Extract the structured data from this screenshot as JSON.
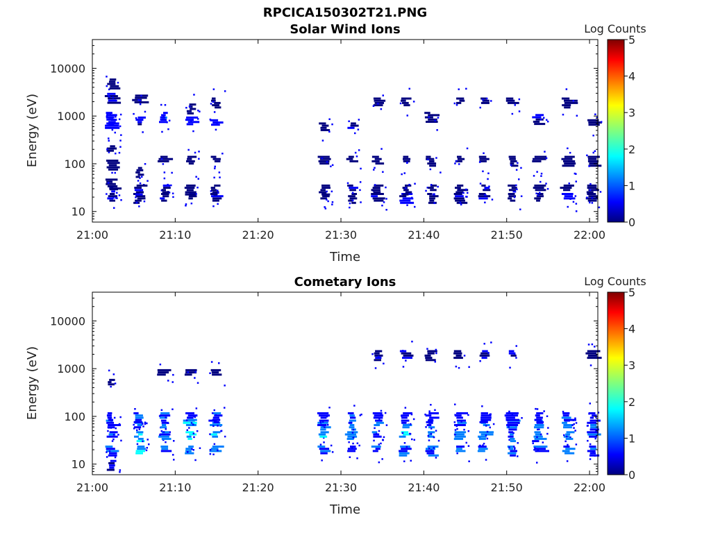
{
  "figure": {
    "title": "RPCICA150302T21.PNG"
  },
  "colors": {
    "colormap": [
      "#00007f",
      "#0000ff",
      "#007fff",
      "#00ffff",
      "#7fff7f",
      "#ffff00",
      "#ff7f00",
      "#ff0000",
      "#7f0000"
    ]
  },
  "chart_data": [
    {
      "type": "heatmap",
      "title": "Solar Wind Ions",
      "xlabel": "Time",
      "ylabel": "Energy (eV)",
      "xlim": [
        "21:00",
        "22:01"
      ],
      "x_ticks": [
        "21:00",
        "21:10",
        "21:20",
        "21:30",
        "21:40",
        "21:50",
        "22:00"
      ],
      "ylim": [
        6,
        40000
      ],
      "y_scale": "log",
      "y_ticks": [
        10,
        100,
        1000,
        10000
      ],
      "y_tick_labels": [
        "10",
        "100",
        "1000",
        "10000"
      ],
      "colorbar": {
        "label": "Log Counts",
        "range": [
          0,
          5
        ],
        "ticks": [
          "0",
          "1",
          "2",
          "3",
          "4",
          "5"
        ]
      },
      "gap": [
        "21:17",
        "21:26"
      ],
      "sweeps": [
        {
          "t": "21:02.5",
          "bands": [
            {
              "e": 20,
              "v": 0.3
            },
            {
              "e": 28,
              "v": 0.3
            },
            {
              "e": 40,
              "v": 0.2
            },
            {
              "e": 100,
              "v": 0.2
            },
            {
              "e": 200,
              "v": 0.2
            },
            {
              "e": 600,
              "v": 0.5
            },
            {
              "e": 800,
              "v": 0.7
            },
            {
              "e": 1000,
              "v": 0.6
            },
            {
              "e": 2500,
              "v": 0.3
            },
            {
              "e": 5000,
              "v": 0.2
            }
          ]
        },
        {
          "t": "21:05.8",
          "bands": [
            {
              "e": 20,
              "v": 0.2
            },
            {
              "e": 30,
              "v": 0.3
            },
            {
              "e": 70,
              "v": 0.2
            },
            {
              "e": 800,
              "v": 0.4
            },
            {
              "e": 2300,
              "v": 0.2
            }
          ]
        },
        {
          "t": "21:08.8",
          "bands": [
            {
              "e": 20,
              "v": 0.3
            },
            {
              "e": 30,
              "v": 0.3
            },
            {
              "e": 120,
              "v": 0.2
            },
            {
              "e": 800,
              "v": 0.9
            },
            {
              "e": 1000,
              "v": 0.5
            }
          ]
        },
        {
          "t": "21:12.0",
          "bands": [
            {
              "e": 20,
              "v": 0.3
            },
            {
              "e": 30,
              "v": 0.3
            },
            {
              "e": 120,
              "v": 0.2
            },
            {
              "e": 800,
              "v": 0.5
            },
            {
              "e": 1500,
              "v": 0.2
            }
          ]
        },
        {
          "t": "21:15.0",
          "bands": [
            {
              "e": 20,
              "v": 0.3
            },
            {
              "e": 30,
              "v": 0.2
            },
            {
              "e": 120,
              "v": 0.2
            },
            {
              "e": 700,
              "v": 0.4
            },
            {
              "e": 2000,
              "v": 0.2
            }
          ]
        },
        {
          "t": "21:28.0",
          "bands": [
            {
              "e": 20,
              "v": 0.2
            },
            {
              "e": 30,
              "v": 0.2
            },
            {
              "e": 120,
              "v": 0.2
            },
            {
              "e": 600,
              "v": 0.2
            }
          ]
        },
        {
          "t": "21:31.5",
          "bands": [
            {
              "e": 20,
              "v": 0.3
            },
            {
              "e": 30,
              "v": 0.3
            },
            {
              "e": 120,
              "v": 0.2
            },
            {
              "e": 600,
              "v": 0.3
            }
          ]
        },
        {
          "t": "21:34.5",
          "bands": [
            {
              "e": 20,
              "v": 0.3
            },
            {
              "e": 30,
              "v": 0.2
            },
            {
              "e": 120,
              "v": 0.2
            },
            {
              "e": 2000,
              "v": 0.2
            }
          ]
        },
        {
          "t": "21:38.0",
          "bands": [
            {
              "e": 20,
              "v": 0.3
            },
            {
              "e": 30,
              "v": 0.3
            },
            {
              "e": 120,
              "v": 0.2
            },
            {
              "e": 2000,
              "v": 0.2
            }
          ]
        },
        {
          "t": "21:41.0",
          "bands": [
            {
              "e": 20,
              "v": 0.2
            },
            {
              "e": 30,
              "v": 0.2
            },
            {
              "e": 120,
              "v": 0.2
            },
            {
              "e": 1000,
              "v": 0.2
            }
          ]
        },
        {
          "t": "21:44.5",
          "bands": [
            {
              "e": 20,
              "v": 0.3
            },
            {
              "e": 30,
              "v": 0.2
            },
            {
              "e": 120,
              "v": 0.2
            },
            {
              "e": 2000,
              "v": 0.2
            }
          ]
        },
        {
          "t": "21:47.5",
          "bands": [
            {
              "e": 20,
              "v": 0.3
            },
            {
              "e": 30,
              "v": 0.3
            },
            {
              "e": 120,
              "v": 0.2
            },
            {
              "e": 2000,
              "v": 0.2
            }
          ]
        },
        {
          "t": "21:50.8",
          "bands": [
            {
              "e": 20,
              "v": 0.2
            },
            {
              "e": 30,
              "v": 0.2
            },
            {
              "e": 120,
              "v": 0.2
            },
            {
              "e": 2000,
              "v": 0.2
            }
          ]
        },
        {
          "t": "21:54.0",
          "bands": [
            {
              "e": 20,
              "v": 0.2
            },
            {
              "e": 30,
              "v": 0.2
            },
            {
              "e": 120,
              "v": 0.2
            },
            {
              "e": 900,
              "v": 0.3
            }
          ]
        },
        {
          "t": "21:57.5",
          "bands": [
            {
              "e": 20,
              "v": 0.3
            },
            {
              "e": 30,
              "v": 0.2
            },
            {
              "e": 120,
              "v": 0.2
            },
            {
              "e": 2000,
              "v": 0.2
            }
          ]
        },
        {
          "t": "22:00.5",
          "bands": [
            {
              "e": 20,
              "v": 0.2
            },
            {
              "e": 30,
              "v": 0.2
            },
            {
              "e": 120,
              "v": 0.2
            },
            {
              "e": 700,
              "v": 0.2
            }
          ]
        }
      ]
    },
    {
      "type": "heatmap",
      "title": "Cometary Ions",
      "xlabel": "Time",
      "ylabel": "Energy (eV)",
      "xlim": [
        "21:00",
        "22:01"
      ],
      "x_ticks": [
        "21:00",
        "21:10",
        "21:20",
        "21:30",
        "21:40",
        "21:50",
        "22:00"
      ],
      "ylim": [
        6,
        40000
      ],
      "y_scale": "log",
      "y_ticks": [
        10,
        100,
        1000,
        10000
      ],
      "y_tick_labels": [
        "10",
        "100",
        "1000",
        "10000"
      ],
      "colorbar": {
        "label": "Log Counts",
        "range": [
          0,
          5
        ],
        "ticks": [
          "0",
          "1",
          "2",
          "3",
          "4",
          "5"
        ]
      },
      "gap": [
        "21:17",
        "21:26"
      ],
      "sweeps": [
        {
          "t": "21:02.5",
          "bands": [
            {
              "e": 10,
              "v": 0.3
            },
            {
              "e": 20,
              "v": 0.9
            },
            {
              "e": 40,
              "v": 1.2
            },
            {
              "e": 70,
              "v": 1.0
            },
            {
              "e": 100,
              "v": 0.7
            },
            {
              "e": 500,
              "v": 0.2
            }
          ]
        },
        {
          "t": "21:05.8",
          "bands": [
            {
              "e": 20,
              "v": 1.3
            },
            {
              "e": 40,
              "v": 1.5
            },
            {
              "e": 70,
              "v": 1.2
            },
            {
              "e": 100,
              "v": 0.8
            }
          ]
        },
        {
          "t": "21:08.8",
          "bands": [
            {
              "e": 20,
              "v": 1.2
            },
            {
              "e": 40,
              "v": 1.4
            },
            {
              "e": 70,
              "v": 1.2
            },
            {
              "e": 100,
              "v": 0.8
            },
            {
              "e": 800,
              "v": 0.2
            }
          ]
        },
        {
          "t": "21:12.0",
          "bands": [
            {
              "e": 20,
              "v": 1.1
            },
            {
              "e": 40,
              "v": 1.4
            },
            {
              "e": 70,
              "v": 1.3
            },
            {
              "e": 100,
              "v": 0.8
            },
            {
              "e": 800,
              "v": 0.2
            }
          ]
        },
        {
          "t": "21:15.0",
          "bands": [
            {
              "e": 20,
              "v": 1.3
            },
            {
              "e": 40,
              "v": 1.5
            },
            {
              "e": 70,
              "v": 1.3
            },
            {
              "e": 100,
              "v": 0.8
            },
            {
              "e": 800,
              "v": 0.2
            }
          ]
        },
        {
          "t": "21:28.0",
          "bands": [
            {
              "e": 20,
              "v": 1.0
            },
            {
              "e": 40,
              "v": 1.3
            },
            {
              "e": 70,
              "v": 1.2
            },
            {
              "e": 100,
              "v": 0.8
            }
          ]
        },
        {
          "t": "21:31.5",
          "bands": [
            {
              "e": 20,
              "v": 1.1
            },
            {
              "e": 40,
              "v": 1.4
            },
            {
              "e": 70,
              "v": 1.2
            },
            {
              "e": 100,
              "v": 0.8
            }
          ]
        },
        {
          "t": "21:34.5",
          "bands": [
            {
              "e": 20,
              "v": 1.0
            },
            {
              "e": 40,
              "v": 1.3
            },
            {
              "e": 70,
              "v": 1.2
            },
            {
              "e": 100,
              "v": 0.8
            },
            {
              "e": 2000,
              "v": 0.3
            }
          ]
        },
        {
          "t": "21:38.0",
          "bands": [
            {
              "e": 20,
              "v": 1.0
            },
            {
              "e": 40,
              "v": 1.4
            },
            {
              "e": 70,
              "v": 1.2
            },
            {
              "e": 100,
              "v": 0.8
            },
            {
              "e": 2000,
              "v": 0.3
            }
          ]
        },
        {
          "t": "21:41.0",
          "bands": [
            {
              "e": 20,
              "v": 1.0
            },
            {
              "e": 40,
              "v": 1.2
            },
            {
              "e": 70,
              "v": 1.1
            },
            {
              "e": 100,
              "v": 0.7
            },
            {
              "e": 2000,
              "v": 0.2
            }
          ]
        },
        {
          "t": "21:44.5",
          "bands": [
            {
              "e": 20,
              "v": 1.0
            },
            {
              "e": 40,
              "v": 1.3
            },
            {
              "e": 70,
              "v": 1.2
            },
            {
              "e": 100,
              "v": 0.7
            },
            {
              "e": 2000,
              "v": 0.2
            }
          ]
        },
        {
          "t": "21:47.5",
          "bands": [
            {
              "e": 20,
              "v": 1.0
            },
            {
              "e": 40,
              "v": 1.2
            },
            {
              "e": 70,
              "v": 1.1
            },
            {
              "e": 100,
              "v": 0.7
            },
            {
              "e": 2000,
              "v": 0.3
            }
          ]
        },
        {
          "t": "21:50.8",
          "bands": [
            {
              "e": 20,
              "v": 1.0
            },
            {
              "e": 40,
              "v": 1.3
            },
            {
              "e": 70,
              "v": 1.1
            },
            {
              "e": 100,
              "v": 0.7
            },
            {
              "e": 2000,
              "v": 0.3
            }
          ]
        },
        {
          "t": "21:54.0",
          "bands": [
            {
              "e": 20,
              "v": 0.9
            },
            {
              "e": 40,
              "v": 1.2
            },
            {
              "e": 70,
              "v": 1.1
            },
            {
              "e": 100,
              "v": 0.7
            }
          ]
        },
        {
          "t": "21:57.5",
          "bands": [
            {
              "e": 20,
              "v": 1.1
            },
            {
              "e": 40,
              "v": 1.4
            },
            {
              "e": 70,
              "v": 1.2
            },
            {
              "e": 100,
              "v": 0.8
            }
          ]
        },
        {
          "t": "22:00.5",
          "bands": [
            {
              "e": 20,
              "v": 0.9
            },
            {
              "e": 40,
              "v": 1.2
            },
            {
              "e": 70,
              "v": 1.1
            },
            {
              "e": 100,
              "v": 0.7
            },
            {
              "e": 2000,
              "v": 0.2
            }
          ]
        }
      ]
    }
  ]
}
